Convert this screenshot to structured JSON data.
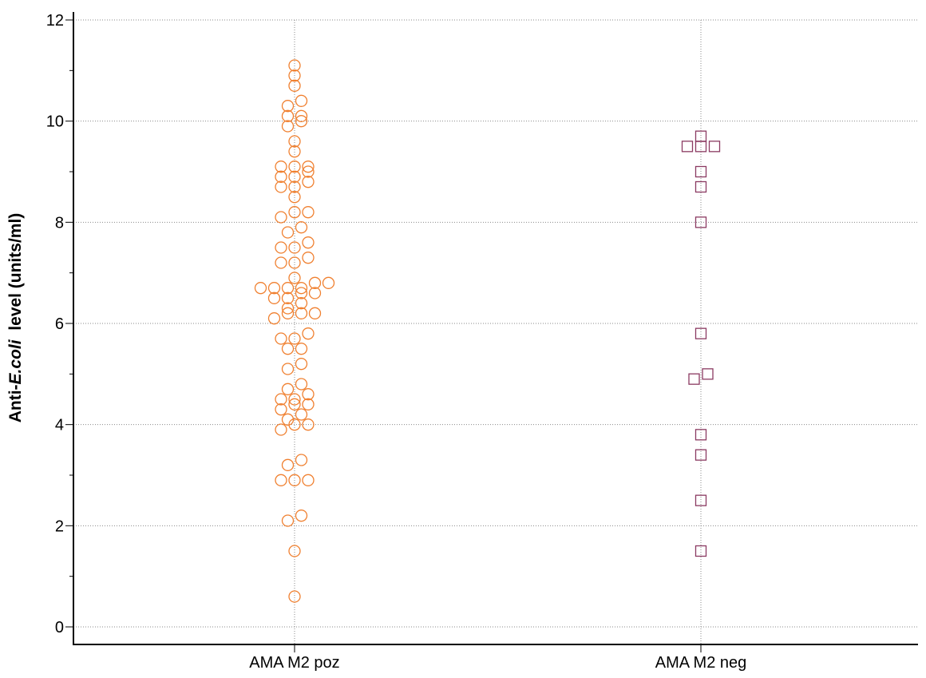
{
  "chart_data": {
    "type": "scatter",
    "title": "",
    "xlabel": "",
    "ylabel": {
      "prefix": "Anti-",
      "italic": "E.coli",
      "suffix": "  level (units/ml)"
    },
    "ylim": [
      0,
      12
    ],
    "yticks": [
      0,
      2,
      4,
      6,
      8,
      10,
      12
    ],
    "y_minor_step": 1,
    "grid": true,
    "categories": [
      "AMA M2 poz",
      "AMA M2 neg"
    ],
    "series": [
      {
        "category": "AMA M2 poz",
        "marker": "circle",
        "color": "#F08030",
        "points": [
          {
            "y": 11.1,
            "off": 0
          },
          {
            "y": 10.9,
            "off": 0
          },
          {
            "y": 10.7,
            "off": 0
          },
          {
            "y": 10.4,
            "off": 1
          },
          {
            "y": 10.3,
            "off": -1
          },
          {
            "y": 10.1,
            "off": -1
          },
          {
            "y": 10.1,
            "off": 1
          },
          {
            "y": 10.0,
            "off": 1
          },
          {
            "y": 9.9,
            "off": -1
          },
          {
            "y": 9.6,
            "off": 0
          },
          {
            "y": 9.4,
            "off": 0
          },
          {
            "y": 9.1,
            "off": -2
          },
          {
            "y": 9.1,
            "off": 0
          },
          {
            "y": 9.1,
            "off": 2
          },
          {
            "y": 9.0,
            "off": 2
          },
          {
            "y": 8.9,
            "off": -2
          },
          {
            "y": 8.9,
            "off": 0
          },
          {
            "y": 8.8,
            "off": 2
          },
          {
            "y": 8.7,
            "off": -2
          },
          {
            "y": 8.7,
            "off": 0
          },
          {
            "y": 8.5,
            "off": 0
          },
          {
            "y": 8.2,
            "off": 0
          },
          {
            "y": 8.2,
            "off": 2
          },
          {
            "y": 8.1,
            "off": -2
          },
          {
            "y": 7.9,
            "off": 1
          },
          {
            "y": 7.8,
            "off": -1
          },
          {
            "y": 7.6,
            "off": 2
          },
          {
            "y": 7.5,
            "off": -2
          },
          {
            "y": 7.5,
            "off": 0
          },
          {
            "y": 7.3,
            "off": 2
          },
          {
            "y": 7.2,
            "off": -2
          },
          {
            "y": 7.2,
            "off": 0
          },
          {
            "y": 6.9,
            "off": 0
          },
          {
            "y": 6.8,
            "off": 3
          },
          {
            "y": 6.8,
            "off": 5
          },
          {
            "y": 6.7,
            "off": -5
          },
          {
            "y": 6.7,
            "off": -3
          },
          {
            "y": 6.7,
            "off": -1
          },
          {
            "y": 6.7,
            "off": 1
          },
          {
            "y": 6.6,
            "off": 3
          },
          {
            "y": 6.6,
            "off": 1
          },
          {
            "y": 6.5,
            "off": -3
          },
          {
            "y": 6.5,
            "off": -1
          },
          {
            "y": 6.4,
            "off": 1
          },
          {
            "y": 6.3,
            "off": -1
          },
          {
            "y": 6.2,
            "off": -1
          },
          {
            "y": 6.2,
            "off": 1
          },
          {
            "y": 6.2,
            "off": 3
          },
          {
            "y": 6.1,
            "off": -3
          },
          {
            "y": 5.8,
            "off": 2
          },
          {
            "y": 5.7,
            "off": -2
          },
          {
            "y": 5.7,
            "off": 0
          },
          {
            "y": 5.5,
            "off": -1
          },
          {
            "y": 5.5,
            "off": 1
          },
          {
            "y": 5.2,
            "off": 1
          },
          {
            "y": 5.1,
            "off": -1
          },
          {
            "y": 4.8,
            "off": 1
          },
          {
            "y": 4.7,
            "off": -1
          },
          {
            "y": 4.6,
            "off": 2
          },
          {
            "y": 4.5,
            "off": -2
          },
          {
            "y": 4.5,
            "off": 0
          },
          {
            "y": 4.4,
            "off": 0
          },
          {
            "y": 4.4,
            "off": 2
          },
          {
            "y": 4.3,
            "off": -2
          },
          {
            "y": 4.2,
            "off": 1
          },
          {
            "y": 4.1,
            "off": -1
          },
          {
            "y": 4.0,
            "off": 0
          },
          {
            "y": 4.0,
            "off": 2
          },
          {
            "y": 3.9,
            "off": -2
          },
          {
            "y": 3.3,
            "off": 1
          },
          {
            "y": 3.2,
            "off": -1
          },
          {
            "y": 2.9,
            "off": -2
          },
          {
            "y": 2.9,
            "off": 0
          },
          {
            "y": 2.9,
            "off": 2
          },
          {
            "y": 2.2,
            "off": 1
          },
          {
            "y": 2.1,
            "off": -1
          },
          {
            "y": 1.5,
            "off": 0
          },
          {
            "y": 0.6,
            "off": 0
          }
        ]
      },
      {
        "category": "AMA M2 neg",
        "marker": "square",
        "color": "#8B3A62",
        "points": [
          {
            "y": 9.7,
            "off": 0
          },
          {
            "y": 9.5,
            "off": -2
          },
          {
            "y": 9.5,
            "off": 0
          },
          {
            "y": 9.5,
            "off": 2
          },
          {
            "y": 9.0,
            "off": 0
          },
          {
            "y": 8.7,
            "off": 0
          },
          {
            "y": 8.0,
            "off": 0
          },
          {
            "y": 5.8,
            "off": 0
          },
          {
            "y": 5.0,
            "off": 1
          },
          {
            "y": 4.9,
            "off": -1
          },
          {
            "y": 3.8,
            "off": 0
          },
          {
            "y": 3.4,
            "off": 0
          },
          {
            "y": 2.5,
            "off": 0
          },
          {
            "y": 1.5,
            "off": 0
          }
        ]
      }
    ]
  }
}
